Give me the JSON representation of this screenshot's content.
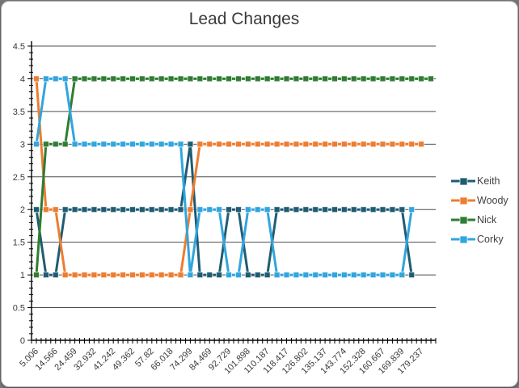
{
  "window": {
    "background": "#767676",
    "panel": "#ffffff"
  },
  "chart_data": {
    "type": "line",
    "title": "Lead Changes",
    "xlabel": "",
    "ylabel": "",
    "ylim": [
      0,
      4.5
    ],
    "y_tick_step": 0.5,
    "y_tick_labels": [
      "0",
      "0.5",
      "1",
      "1.5",
      "2",
      "2.5",
      "3",
      "3.5",
      "4",
      "4.5"
    ],
    "n_categories": 42,
    "x_label_category_step": 2,
    "x_tick_labels": [
      "5.006",
      "14.566",
      "24.459",
      "32.932",
      "41.242",
      "49.362",
      "57.82",
      "66.018",
      "74.299",
      "84.469",
      "92.729",
      "101.898",
      "110.187",
      "118.417",
      "126.802",
      "135.137",
      "143.774",
      "152.328",
      "160.667",
      "169.839",
      "179.237"
    ],
    "grid": "horizontal every 0.5, dark gray",
    "legend_position": "right",
    "grid_color": "#4d4d4d",
    "axis_color": "#000000",
    "series": [
      {
        "name": "Keith",
        "color": "#1F5C73",
        "values": [
          2,
          1,
          1,
          2,
          2,
          2,
          2,
          2,
          2,
          2,
          2,
          2,
          2,
          2,
          2,
          2,
          3,
          1,
          1,
          1,
          2,
          2,
          1,
          1,
          1,
          2,
          2,
          2,
          2,
          2,
          2,
          2,
          2,
          2,
          2,
          2,
          2,
          2,
          2,
          1,
          null,
          null
        ]
      },
      {
        "name": "Woody",
        "color": "#ED7D31",
        "values": [
          4,
          2,
          2,
          1,
          1,
          1,
          1,
          1,
          1,
          1,
          1,
          1,
          1,
          1,
          1,
          1,
          2,
          3,
          3,
          3,
          3,
          3,
          3,
          3,
          3,
          3,
          3,
          3,
          3,
          3,
          3,
          3,
          3,
          3,
          3,
          3,
          3,
          3,
          3,
          3,
          3,
          null
        ]
      },
      {
        "name": "Nick",
        "color": "#2E7D32",
        "values": [
          1,
          3,
          3,
          3,
          4,
          4,
          4,
          4,
          4,
          4,
          4,
          4,
          4,
          4,
          4,
          4,
          4,
          4,
          4,
          4,
          4,
          4,
          4,
          4,
          4,
          4,
          4,
          4,
          4,
          4,
          4,
          4,
          4,
          4,
          4,
          4,
          4,
          4,
          4,
          4,
          4,
          4
        ]
      },
      {
        "name": "Corky",
        "color": "#31A5DE",
        "values": [
          3,
          4,
          4,
          4,
          3,
          3,
          3,
          3,
          3,
          3,
          3,
          3,
          3,
          3,
          3,
          3,
          1,
          2,
          2,
          2,
          1,
          1,
          2,
          2,
          2,
          1,
          1,
          1,
          1,
          1,
          1,
          1,
          1,
          1,
          1,
          1,
          1,
          1,
          1,
          2,
          null,
          null
        ]
      }
    ]
  }
}
